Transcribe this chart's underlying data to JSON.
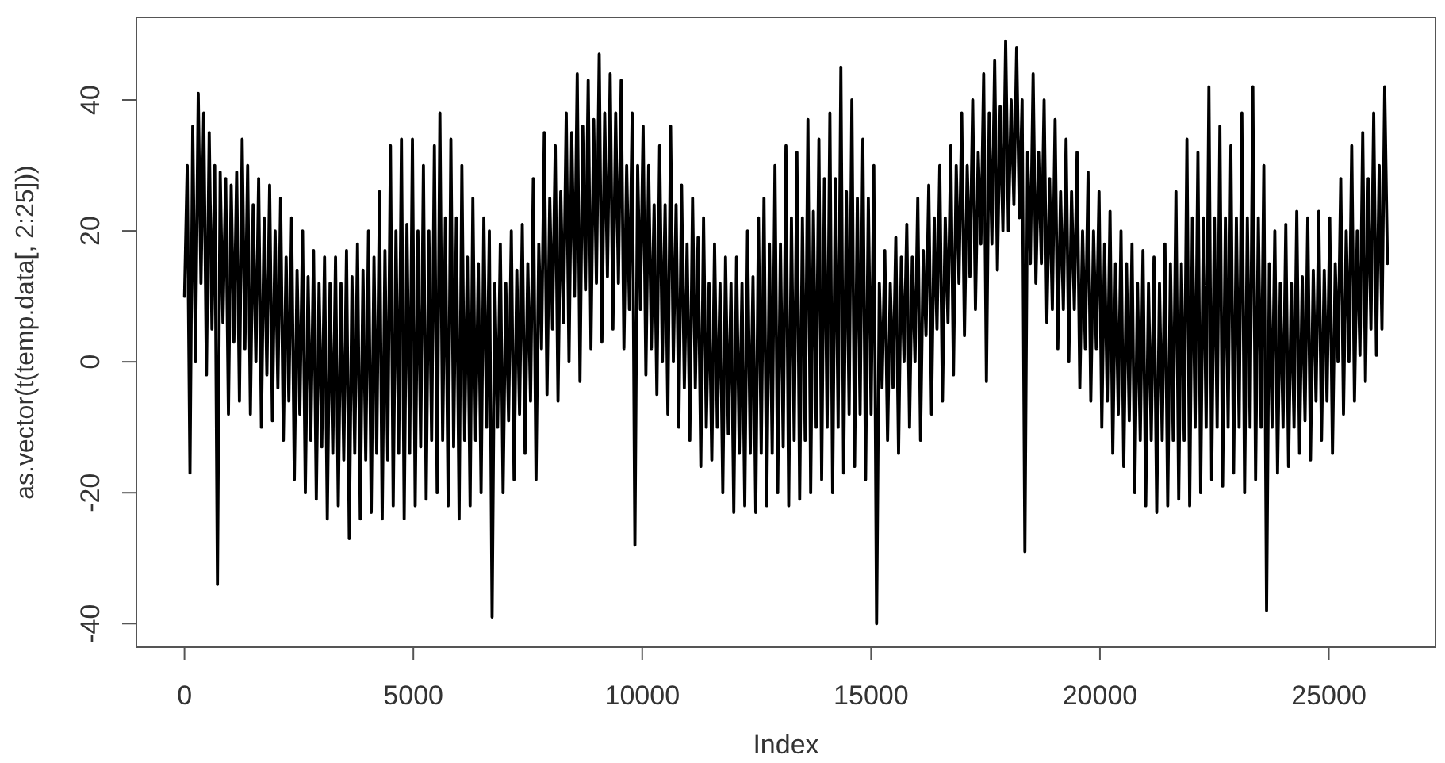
{
  "chart_data": {
    "type": "line",
    "xlabel": "Index",
    "ylabel": "as.vector(t(temp.data[, 2:25]))",
    "x": [
      1,
      60,
      120,
      180,
      240,
      300,
      360,
      420,
      480,
      540,
      600,
      660,
      720,
      780,
      840,
      900,
      960,
      1020,
      1080,
      1140,
      1200,
      1260,
      1320,
      1380,
      1440,
      1500,
      1560,
      1620,
      1680,
      1740,
      1800,
      1860,
      1920,
      1980,
      2040,
      2100,
      2160,
      2220,
      2280,
      2340,
      2400,
      2460,
      2520,
      2580,
      2640,
      2700,
      2760,
      2820,
      2880,
      2940,
      3000,
      3060,
      3120,
      3180,
      3240,
      3300,
      3360,
      3420,
      3480,
      3540,
      3600,
      3660,
      3720,
      3780,
      3840,
      3900,
      3960,
      4020,
      4080,
      4140,
      4200,
      4260,
      4320,
      4380,
      4440,
      4500,
      4560,
      4620,
      4680,
      4740,
      4800,
      4860,
      4920,
      4980,
      5040,
      5100,
      5160,
      5220,
      5280,
      5340,
      5400,
      5460,
      5520,
      5580,
      5640,
      5700,
      5760,
      5820,
      5880,
      5940,
      6000,
      6060,
      6120,
      6180,
      6240,
      6300,
      6360,
      6420,
      6480,
      6540,
      6600,
      6660,
      6720,
      6780,
      6840,
      6900,
      6960,
      7020,
      7080,
      7140,
      7200,
      7260,
      7320,
      7380,
      7440,
      7500,
      7560,
      7620,
      7680,
      7740,
      7800,
      7860,
      7920,
      7980,
      8040,
      8100,
      8160,
      8220,
      8280,
      8340,
      8400,
      8460,
      8520,
      8580,
      8640,
      8700,
      8760,
      8820,
      8880,
      8940,
      9000,
      9060,
      9120,
      9180,
      9240,
      9300,
      9360,
      9420,
      9480,
      9540,
      9600,
      9660,
      9720,
      9780,
      9840,
      9900,
      9960,
      10020,
      10080,
      10140,
      10200,
      10260,
      10320,
      10380,
      10440,
      10500,
      10560,
      10620,
      10680,
      10740,
      10800,
      10860,
      10920,
      10980,
      11040,
      11100,
      11160,
      11220,
      11280,
      11340,
      11400,
      11460,
      11520,
      11580,
      11640,
      11700,
      11760,
      11820,
      11880,
      11940,
      12000,
      12060,
      12120,
      12180,
      12240,
      12300,
      12360,
      12420,
      12480,
      12540,
      12600,
      12660,
      12720,
      12780,
      12840,
      12900,
      12960,
      13020,
      13080,
      13140,
      13200,
      13260,
      13320,
      13380,
      13440,
      13500,
      13560,
      13620,
      13680,
      13740,
      13800,
      13860,
      13920,
      13980,
      14040,
      14100,
      14160,
      14220,
      14280,
      14340,
      14400,
      14460,
      14520,
      14580,
      14640,
      14700,
      14760,
      14820,
      14880,
      14940,
      15000,
      15060,
      15120,
      15180,
      15240,
      15300,
      15360,
      15420,
      15480,
      15540,
      15600,
      15660,
      15720,
      15780,
      15840,
      15900,
      15960,
      16020,
      16080,
      16140,
      16200,
      16260,
      16320,
      16380,
      16440,
      16500,
      16560,
      16620,
      16680,
      16740,
      16800,
      16860,
      16920,
      16980,
      17040,
      17100,
      17160,
      17220,
      17280,
      17340,
      17400,
      17460,
      17520,
      17580,
      17640,
      17700,
      17760,
      17820,
      17880,
      17940,
      18000,
      18060,
      18120,
      18180,
      18240,
      18300,
      18360,
      18420,
      18480,
      18540,
      18600,
      18660,
      18720,
      18780,
      18840,
      18900,
      18960,
      19020,
      19080,
      19140,
      19200,
      19260,
      19320,
      19380,
      19440,
      19500,
      19560,
      19620,
      19680,
      19740,
      19800,
      19860,
      19920,
      19980,
      20040,
      20100,
      20160,
      20220,
      20280,
      20340,
      20400,
      20460,
      20520,
      20580,
      20640,
      20700,
      20760,
      20820,
      20880,
      20940,
      21000,
      21060,
      21120,
      21180,
      21240,
      21300,
      21360,
      21420,
      21480,
      21540,
      21600,
      21660,
      21720,
      21780,
      21840,
      21900,
      21960,
      22020,
      22080,
      22140,
      22200,
      22260,
      22320,
      22380,
      22440,
      22500,
      22560,
      22620,
      22680,
      22740,
      22800,
      22860,
      22920,
      22980,
      23040,
      23100,
      23160,
      23220,
      23280,
      23340,
      23400,
      23460,
      23520,
      23580,
      23640,
      23700,
      23760,
      23820,
      23880,
      23940,
      24000,
      24060,
      24120,
      24180,
      24240,
      24300,
      24360,
      24420,
      24480,
      24540,
      24600,
      24660,
      24720,
      24780,
      24840,
      24900,
      24960,
      25020,
      25080,
      25140,
      25200,
      25260,
      25320,
      25380,
      25440,
      25500,
      25560,
      25620,
      25680,
      25740,
      25800,
      25860,
      25920,
      25980,
      26040,
      26100,
      26160,
      26220,
      26280
    ],
    "series": [
      {
        "color": "#000000",
        "values": [
          10,
          30,
          -17,
          36,
          0,
          41,
          12,
          38,
          -2,
          35,
          5,
          30,
          -34,
          29,
          6,
          28,
          -8,
          27,
          3,
          29,
          -6,
          34,
          2,
          30,
          -8,
          24,
          0,
          28,
          -10,
          22,
          -2,
          27,
          -9,
          20,
          -4,
          25,
          -12,
          16,
          -6,
          22,
          -18,
          14,
          -8,
          20,
          -20,
          13,
          -12,
          17,
          -21,
          12,
          -13,
          16,
          -24,
          12,
          -14,
          16,
          -22,
          12,
          -15,
          17,
          -27,
          13,
          -14,
          18,
          -24,
          14,
          -15,
          20,
          -23,
          16,
          -14,
          26,
          -24,
          17,
          -15,
          33,
          -22,
          20,
          -14,
          34,
          -24,
          21,
          -14,
          34,
          -22,
          20,
          -13,
          30,
          -21,
          20,
          -12,
          33,
          -20,
          38,
          -12,
          22,
          -22,
          34,
          -13,
          22,
          -24,
          30,
          -12,
          16,
          -22,
          25,
          -12,
          15,
          -20,
          22,
          -10,
          20,
          -39,
          12,
          -10,
          18,
          -20,
          12,
          -9,
          20,
          -18,
          14,
          -8,
          21,
          -14,
          15,
          -6,
          28,
          -18,
          18,
          2,
          35,
          -5,
          25,
          5,
          33,
          -6,
          26,
          6,
          38,
          0,
          35,
          10,
          44,
          -3,
          36,
          11,
          43,
          2,
          37,
          12,
          47,
          3,
          38,
          13,
          44,
          5,
          38,
          12,
          43,
          2,
          30,
          8,
          38,
          -28,
          30,
          8,
          36,
          -2,
          30,
          2,
          24,
          -5,
          33,
          0,
          24,
          -8,
          36,
          0,
          24,
          -10,
          27,
          -4,
          18,
          -12,
          25,
          -4,
          19,
          -16,
          22,
          -10,
          12,
          -15,
          18,
          -10,
          12,
          -20,
          16,
          -11,
          12,
          -23,
          16,
          -14,
          12,
          -22,
          20,
          -14,
          13,
          -23,
          22,
          -14,
          25,
          -22,
          18,
          -14,
          30,
          -20,
          18,
          -13,
          33,
          -22,
          22,
          -12,
          32,
          -21,
          22,
          -12,
          37,
          -20,
          23,
          -10,
          34,
          -18,
          28,
          -10,
          38,
          -20,
          28,
          -10,
          45,
          -17,
          26,
          -8,
          40,
          -16,
          25,
          -8,
          34,
          -18,
          25,
          -8,
          30,
          -40,
          12,
          -4,
          17,
          -12,
          12,
          -4,
          19,
          -14,
          16,
          0,
          21,
          -10,
          16,
          0,
          25,
          -12,
          17,
          4,
          27,
          -8,
          22,
          5,
          30,
          -6,
          22,
          6,
          33,
          -2,
          30,
          12,
          38,
          4,
          30,
          13,
          40,
          8,
          32,
          18,
          44,
          -3,
          38,
          18,
          46,
          14,
          39,
          20,
          49,
          20,
          40,
          24,
          48,
          22,
          40,
          -29,
          32,
          15,
          44,
          12,
          32,
          15,
          40,
          6,
          28,
          8,
          37,
          2,
          26,
          8,
          34,
          0,
          26,
          8,
          32,
          -4,
          20,
          2,
          29,
          -6,
          20,
          2,
          26,
          -10,
          18,
          -6,
          23,
          -14,
          15,
          -8,
          20,
          -16,
          15,
          -9,
          18,
          -20,
          12,
          -12,
          17,
          -22,
          12,
          -12,
          16,
          -23,
          12,
          -12,
          18,
          -22,
          15,
          -12,
          26,
          -21,
          15,
          -12,
          34,
          -22,
          22,
          -10,
          32,
          -20,
          22,
          -10,
          42,
          -18,
          22,
          -10,
          36,
          -19,
          22,
          -10,
          33,
          -17,
          22,
          -10,
          38,
          -20,
          22,
          -10,
          42,
          -18,
          22,
          -10,
          30,
          -38,
          15,
          -10,
          20,
          -17,
          12,
          -10,
          21,
          -16,
          12,
          -10,
          23,
          -14,
          13,
          -9,
          22,
          -15,
          14,
          -6,
          23,
          -12,
          14,
          -6,
          22,
          -14,
          15,
          0,
          28,
          -8,
          20,
          0,
          33,
          -6,
          20,
          1,
          35,
          -3,
          28,
          5,
          38,
          1,
          30,
          5,
          42,
          15
        ]
      }
    ],
    "xlim": [
      -1050,
      27330
    ],
    "ylim": [
      -43.6,
      52.6
    ],
    "xticks": [
      0,
      5000,
      10000,
      15000,
      20000,
      25000
    ],
    "yticks": [
      -40,
      -20,
      0,
      20,
      40
    ]
  }
}
